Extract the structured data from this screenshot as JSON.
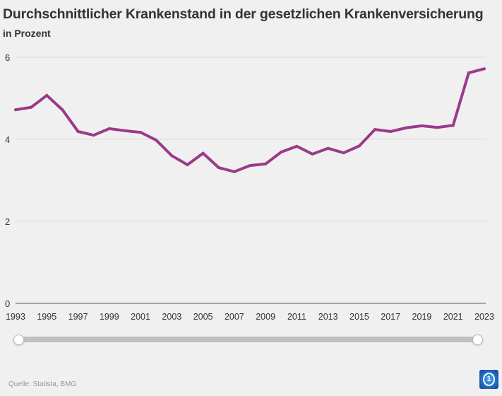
{
  "chart_data": {
    "type": "line",
    "title": "Durchschnittlicher Krankenstand in der gesetzlichen Krankenversicherung",
    "subtitle": "in Prozent",
    "x": [
      1993,
      1994,
      1995,
      1996,
      1997,
      1998,
      1999,
      2000,
      2001,
      2002,
      2003,
      2004,
      2005,
      2006,
      2007,
      2008,
      2009,
      2010,
      2011,
      2012,
      2013,
      2014,
      2015,
      2016,
      2017,
      2018,
      2019,
      2020,
      2021,
      2022,
      2023
    ],
    "series": [
      {
        "values": [
          4.72,
          4.78,
          5.07,
          4.72,
          4.19,
          4.1,
          4.26,
          4.21,
          4.17,
          3.98,
          3.6,
          3.38,
          3.66,
          3.31,
          3.21,
          3.36,
          3.4,
          3.69,
          3.83,
          3.64,
          3.78,
          3.67,
          3.84,
          4.24,
          4.19,
          4.28,
          4.33,
          4.29,
          4.34,
          5.62,
          5.72
        ],
        "color": "#9b3a8a"
      }
    ],
    "xticks": [
      "1993",
      "1995",
      "1997",
      "1999",
      "2001",
      "2003",
      "2005",
      "2007",
      "2009",
      "2011",
      "2013",
      "2015",
      "2017",
      "2019",
      "2021",
      "2023"
    ],
    "yticks": [
      "0",
      "2",
      "4",
      "6"
    ],
    "ylim": [
      0,
      6
    ],
    "xlim": [
      1993,
      2023
    ],
    "grid": true,
    "source": "Quelle: Statista, BMG"
  },
  "range_slider": {
    "start": 1993,
    "end": 2023
  }
}
